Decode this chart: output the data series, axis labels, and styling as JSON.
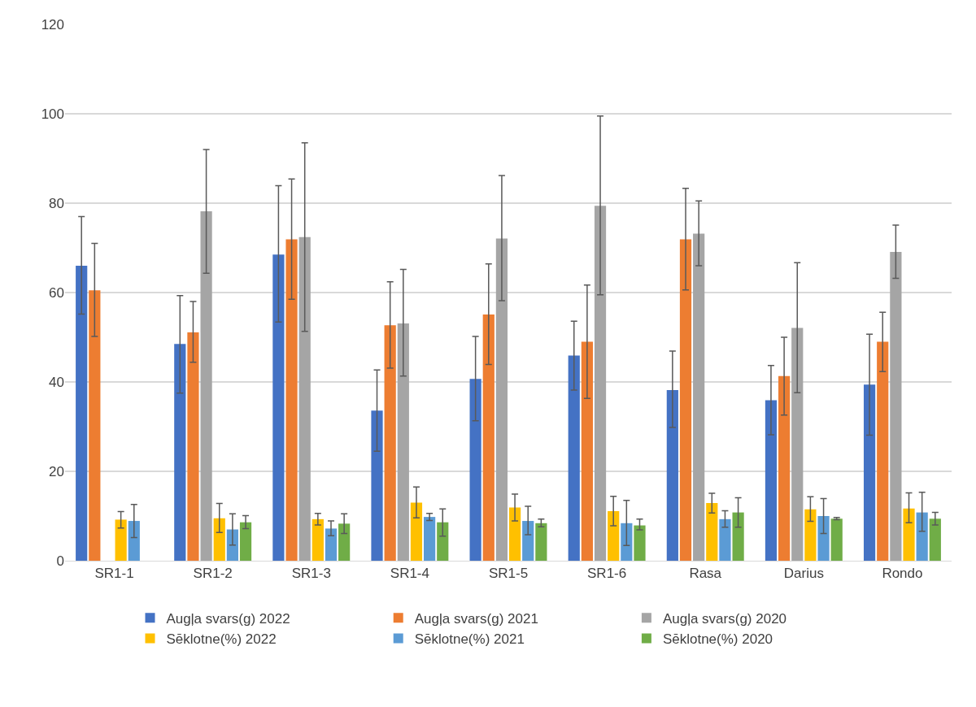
{
  "chart_data": {
    "type": "bar",
    "categories": [
      "SR1-1",
      "SR1-2",
      "SR1-3",
      "SR1-4",
      "SR1-5",
      "SR1-6",
      "Rasa",
      "Darius",
      "Rondo"
    ],
    "ylim": [
      0,
      120
    ],
    "yticks": [
      0,
      20,
      40,
      60,
      80,
      100,
      120
    ],
    "grid": "y",
    "legend": "bottom",
    "series": [
      {
        "name": "Augļa svars(g) 2022",
        "color": "#4472c4",
        "values": [
          66,
          48.5,
          68.5,
          33.6,
          40.7,
          45.9,
          38.2,
          35.9,
          39.4
        ],
        "errors": [
          [
            55.2,
            77
          ],
          [
            37.5,
            59.3
          ],
          [
            53.4,
            83.9
          ],
          [
            24.5,
            42.7
          ],
          [
            31.3,
            50.2
          ],
          [
            38.2,
            53.6
          ],
          [
            29.8,
            46.9
          ],
          [
            28.2,
            43.7
          ],
          [
            28.1,
            50.7
          ]
        ]
      },
      {
        "name": "Augļa svars(g) 2021",
        "color": "#ed7d31",
        "values": [
          60.5,
          51.1,
          71.9,
          52.7,
          55.1,
          49,
          71.9,
          41.3,
          49
        ],
        "errors": [
          [
            50.2,
            71
          ],
          [
            44.4,
            58
          ],
          [
            58.5,
            85.4
          ],
          [
            43.1,
            62.4
          ],
          [
            43.9,
            66.4
          ],
          [
            36.3,
            61.7
          ],
          [
            60.6,
            83.3
          ],
          [
            32.6,
            50
          ],
          [
            42.3,
            55.6
          ]
        ]
      },
      {
        "name": "Augļa svars(g) 2020",
        "color": "#a5a5a5",
        "values": [
          null,
          78.2,
          72.4,
          53.1,
          72.1,
          79.4,
          73.2,
          52.1,
          69.1
        ],
        "errors": [
          null,
          [
            64.3,
            92
          ],
          [
            51.3,
            93.5
          ],
          [
            41.3,
            65.2
          ],
          [
            58.2,
            86.2
          ],
          [
            59.5,
            99.5
          ],
          [
            66,
            80.5
          ],
          [
            37.6,
            66.7
          ],
          [
            63.2,
            75.1
          ]
        ]
      },
      {
        "name": "Sēklotne(%) 2022",
        "color": "#ffc000",
        "values": [
          9.2,
          9.5,
          9.3,
          13,
          11.9,
          11.1,
          12.9,
          11.5,
          11.7
        ],
        "errors": [
          [
            7.3,
            11
          ],
          [
            6.3,
            12.8
          ],
          [
            8,
            10.6
          ],
          [
            9.6,
            16.5
          ],
          [
            8.9,
            14.9
          ],
          [
            7.8,
            14.4
          ],
          [
            10.7,
            15.1
          ],
          [
            8.8,
            14.3
          ],
          [
            8.5,
            15.2
          ]
        ]
      },
      {
        "name": "Sēklotne(%) 2021",
        "color": "#5b9bd5",
        "values": [
          8.9,
          7,
          7.2,
          9.8,
          8.9,
          8.4,
          9.3,
          10,
          10.8
        ],
        "errors": [
          [
            5.2,
            12.6
          ],
          [
            3.5,
            10.5
          ],
          [
            5.6,
            8.9
          ],
          [
            9,
            10.6
          ],
          [
            5.8,
            12.2
          ],
          [
            3.4,
            13.5
          ],
          [
            7.5,
            11.2
          ],
          [
            6.1,
            13.9
          ],
          [
            6.6,
            15.3
          ]
        ]
      },
      {
        "name": "Sēklotne(%) 2020",
        "color": "#70ad47",
        "values": [
          null,
          8.6,
          8.3,
          8.6,
          8.4,
          7.9,
          10.8,
          9.4,
          9.4
        ],
        "errors": [
          null,
          [
            7.2,
            10.1
          ],
          [
            6.1,
            10.5
          ],
          [
            5.5,
            11.6
          ],
          [
            7.6,
            9.3
          ],
          [
            6.9,
            9.3
          ],
          [
            7.5,
            14.1
          ],
          [
            9.2,
            9.7
          ],
          [
            8,
            10.8
          ]
        ]
      }
    ]
  }
}
